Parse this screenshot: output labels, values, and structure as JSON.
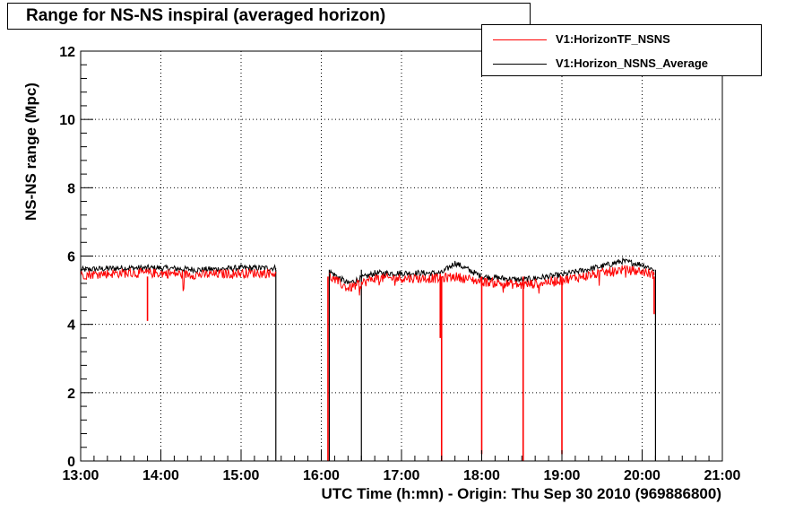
{
  "title": "Range for NS-NS inspiral (averaged horizon)",
  "legend": [
    {
      "label": "V1:HorizonTF_NSNS",
      "color": "#ff0000"
    },
    {
      "label": "V1:Horizon_NSNS_Average",
      "color": "#000000"
    }
  ],
  "chart_data": {
    "type": "line",
    "title": "Range for NS-NS inspiral (averaged horizon)",
    "xlabel": "UTC Time (h:mn) - Origin: Thu Sep 30 2010 (969886800)",
    "ylabel": "NS-NS range (Mpc)",
    "xlim": [
      "13:00",
      "21:00"
    ],
    "ylim": [
      0,
      12
    ],
    "x_ticks": [
      "13:00",
      "14:00",
      "15:00",
      "16:00",
      "17:00",
      "18:00",
      "19:00",
      "20:00",
      "21:00"
    ],
    "y_ticks": [
      "0",
      "2",
      "4",
      "6",
      "8",
      "10",
      "12"
    ],
    "grid": true,
    "legend_position": "top-right",
    "series": [
      {
        "name": "V1:HorizonTF_NSNS",
        "color": "#ff0000",
        "segments": [
          {
            "x": [
              "13:00",
              "13:30",
              "14:00",
              "14:30",
              "15:00",
              "15:26"
            ],
            "y": [
              5.45,
              5.5,
              5.5,
              5.45,
              5.5,
              5.5
            ]
          },
          {
            "x": [
              "16:06",
              "16:20",
              "16:40",
              "17:00",
              "17:30",
              "17:40",
              "18:00",
              "18:30",
              "19:00",
              "19:30",
              "19:45",
              "20:00",
              "20:09"
            ],
            "y": [
              5.4,
              5.05,
              5.35,
              5.35,
              5.35,
              5.4,
              5.25,
              5.15,
              5.3,
              5.5,
              5.6,
              5.55,
              5.45
            ]
          }
        ],
        "dropouts": [
          {
            "x": "13:50",
            "y": 4.1
          },
          {
            "x": "16:05",
            "y": 0
          },
          {
            "x": "17:29",
            "y": 3.6
          },
          {
            "x": "17:30",
            "y": 0
          },
          {
            "x": "18:00",
            "y": 0.2
          },
          {
            "x": "18:31",
            "y": 0
          },
          {
            "x": "19:00",
            "y": 0.2
          },
          {
            "x": "20:09",
            "y": 4.3
          }
        ]
      },
      {
        "name": "V1:Horizon_NSNS_Average",
        "color": "#000000",
        "segments": [
          {
            "x": [
              "13:00",
              "13:30",
              "14:00",
              "14:30",
              "15:00",
              "15:26"
            ],
            "y": [
              5.6,
              5.65,
              5.65,
              5.6,
              5.65,
              5.65
            ]
          },
          {
            "x": [
              "16:06",
              "16:20",
              "16:40",
              "17:00",
              "17:30",
              "17:40",
              "18:00",
              "18:30",
              "19:00",
              "19:30",
              "19:45",
              "20:00",
              "20:09"
            ],
            "y": [
              5.55,
              5.2,
              5.5,
              5.5,
              5.5,
              5.8,
              5.4,
              5.3,
              5.45,
              5.7,
              5.85,
              5.75,
              5.6
            ]
          }
        ],
        "dropouts": [
          {
            "x": "15:26",
            "y": 0
          },
          {
            "x": "16:06",
            "y": 0
          },
          {
            "x": "16:30",
            "y": 0
          },
          {
            "x": "20:10",
            "y": 0
          }
        ]
      }
    ]
  }
}
